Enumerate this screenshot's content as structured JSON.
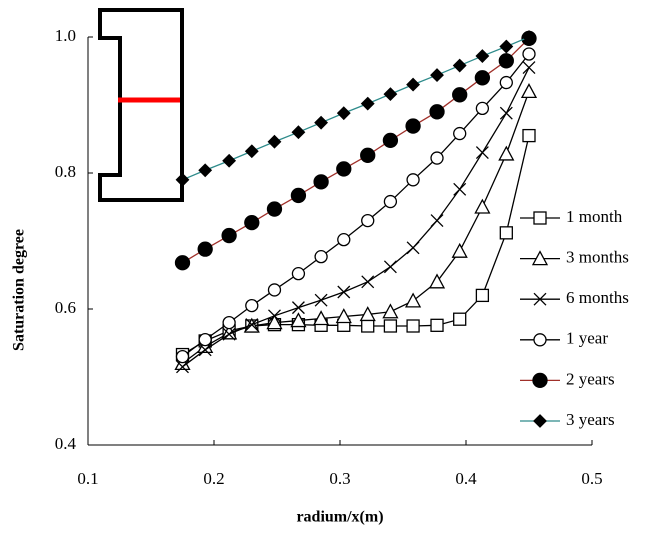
{
  "chart_data": {
    "type": "line",
    "x_label": "radium/x(m)",
    "y_label": "Saturation degree",
    "x": [
      0.175,
      0.193,
      0.212,
      0.23,
      0.248,
      0.267,
      0.285,
      0.303,
      0.322,
      0.34,
      0.358,
      0.377,
      0.395,
      0.413,
      0.432,
      0.45
    ],
    "series": [
      {
        "name": "1 month",
        "color": "#000000",
        "marker": "square",
        "values": [
          0.533,
          0.553,
          0.568,
          0.575,
          0.577,
          0.577,
          0.576,
          0.576,
          0.575,
          0.575,
          0.575,
          0.576,
          0.585,
          0.62,
          0.712,
          0.855
        ]
      },
      {
        "name": "3 months",
        "color": "#000000",
        "marker": "triangle",
        "values": [
          0.52,
          0.545,
          0.565,
          0.575,
          0.58,
          0.583,
          0.586,
          0.589,
          0.592,
          0.596,
          0.612,
          0.64,
          0.685,
          0.75,
          0.828,
          0.92
        ]
      },
      {
        "name": "6 months",
        "color": "#000000",
        "marker": "cross",
        "values": [
          0.515,
          0.54,
          0.563,
          0.577,
          0.59,
          0.602,
          0.613,
          0.625,
          0.64,
          0.662,
          0.69,
          0.73,
          0.776,
          0.83,
          0.888,
          0.955
        ]
      },
      {
        "name": "1 year",
        "color": "#000000",
        "marker": "circle",
        "values": [
          0.53,
          0.555,
          0.58,
          0.605,
          0.628,
          0.652,
          0.677,
          0.702,
          0.73,
          0.758,
          0.79,
          0.822,
          0.858,
          0.895,
          0.933,
          0.975
        ]
      },
      {
        "name": "2 years",
        "color": "#a0302a",
        "marker": "dot",
        "values": [
          0.668,
          0.688,
          0.708,
          0.727,
          0.747,
          0.767,
          0.787,
          0.806,
          0.826,
          0.848,
          0.869,
          0.89,
          0.915,
          0.94,
          0.965,
          0.998
        ]
      },
      {
        "name": "3 years",
        "color": "#2e8b8b",
        "marker": "diamond",
        "values": [
          0.79,
          0.804,
          0.818,
          0.832,
          0.846,
          0.86,
          0.874,
          0.888,
          0.902,
          0.916,
          0.93,
          0.944,
          0.958,
          0.972,
          0.986,
          1.0
        ]
      }
    ],
    "xlim": [
      0.1,
      0.5
    ],
    "xticks": [
      0.1,
      0.2,
      0.3,
      0.4,
      0.5
    ],
    "ylim": [
      0.4,
      1.0
    ],
    "yticks": [
      0.4,
      0.6,
      0.8,
      {
        "value": 1.0,
        "label": "1.0"
      }
    ],
    "legend": "right"
  }
}
